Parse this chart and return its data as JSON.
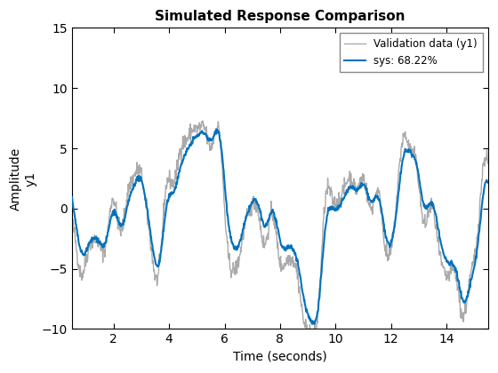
{
  "title": "Simulated Response Comparison",
  "xlabel": "Time (seconds)",
  "ylabel_line1": "Amplitude",
  "ylabel_line2": "y1",
  "xlim": [
    0.5,
    15.5
  ],
  "ylim": [
    -10,
    15
  ],
  "yticks": [
    -10,
    -5,
    0,
    5,
    10,
    15
  ],
  "xticks": [
    2,
    4,
    6,
    8,
    10,
    12,
    14
  ],
  "validation_color": "#aaaaaa",
  "sys_color": "#0072bd",
  "legend_labels": [
    "Validation data (y1)",
    "sys: 68.22%"
  ],
  "validation_linewidth": 1.0,
  "sys_linewidth": 1.5,
  "background_color": "#ffffff",
  "title_fontsize": 11,
  "axis_fontsize": 10,
  "tick_fontsize": 10
}
